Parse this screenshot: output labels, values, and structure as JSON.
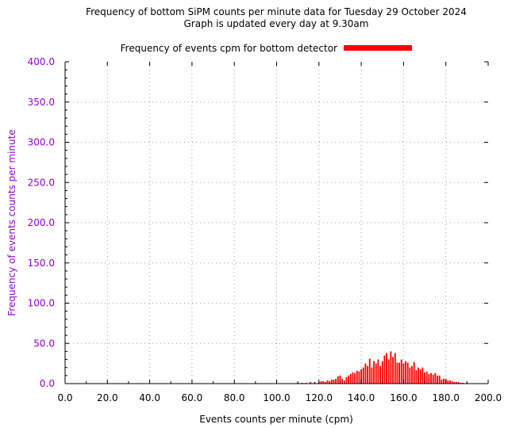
{
  "chart_data": {
    "type": "bar",
    "title": "Frequency of bottom SiPM counts per minute data for Tuesday 29 October 2024",
    "subtitle": "Graph is updated every day at 9.30am",
    "xlabel": "Events counts per minute (cpm)",
    "ylabel": "Frequency of events counts per minute",
    "xlim": [
      0,
      200
    ],
    "ylim": [
      0,
      400
    ],
    "xticks": [
      "0.0",
      "20.0",
      "40.0",
      "60.0",
      "80.0",
      "100.0",
      "120.0",
      "140.0",
      "160.0",
      "180.0",
      "200.0"
    ],
    "yticks": [
      "0.0",
      "50.0",
      "100.0",
      "150.0",
      "200.0",
      "250.0",
      "300.0",
      "350.0",
      "400.0"
    ],
    "grid": true,
    "legend_position": "top-center",
    "series": [
      {
        "name": "Frequency of events cpm for bottom detector",
        "color": "#ff0000",
        "x": [
          110,
          112,
          114,
          116,
          118,
          120,
          121,
          122,
          123,
          124,
          125,
          126,
          127,
          128,
          129,
          130,
          131,
          132,
          133,
          134,
          135,
          136,
          137,
          138,
          139,
          140,
          141,
          142,
          143,
          144,
          145,
          146,
          147,
          148,
          149,
          150,
          151,
          152,
          153,
          154,
          155,
          156,
          157,
          158,
          159,
          160,
          161,
          162,
          163,
          164,
          165,
          166,
          167,
          168,
          169,
          170,
          171,
          172,
          173,
          174,
          175,
          176,
          177,
          178,
          179,
          180,
          181,
          182,
          183,
          184,
          185,
          186,
          187,
          188,
          190
        ],
        "values": [
          1,
          1,
          1,
          2,
          2,
          2,
          3,
          3,
          2,
          4,
          3,
          5,
          5,
          6,
          9,
          10,
          6,
          4,
          8,
          10,
          12,
          14,
          13,
          16,
          15,
          18,
          20,
          25,
          22,
          31,
          20,
          28,
          25,
          30,
          22,
          28,
          35,
          38,
          30,
          40,
          33,
          38,
          26,
          26,
          30,
          25,
          28,
          26,
          20,
          22,
          27,
          17,
          20,
          18,
          20,
          14,
          15,
          12,
          13,
          11,
          13,
          10,
          10,
          5,
          6,
          6,
          4,
          4,
          3,
          2,
          2,
          2,
          1,
          1,
          1
        ]
      }
    ]
  },
  "colors": {
    "axis_text": "#9400d3",
    "bar": "#ff0000",
    "grid": "#a0a0a0"
  }
}
